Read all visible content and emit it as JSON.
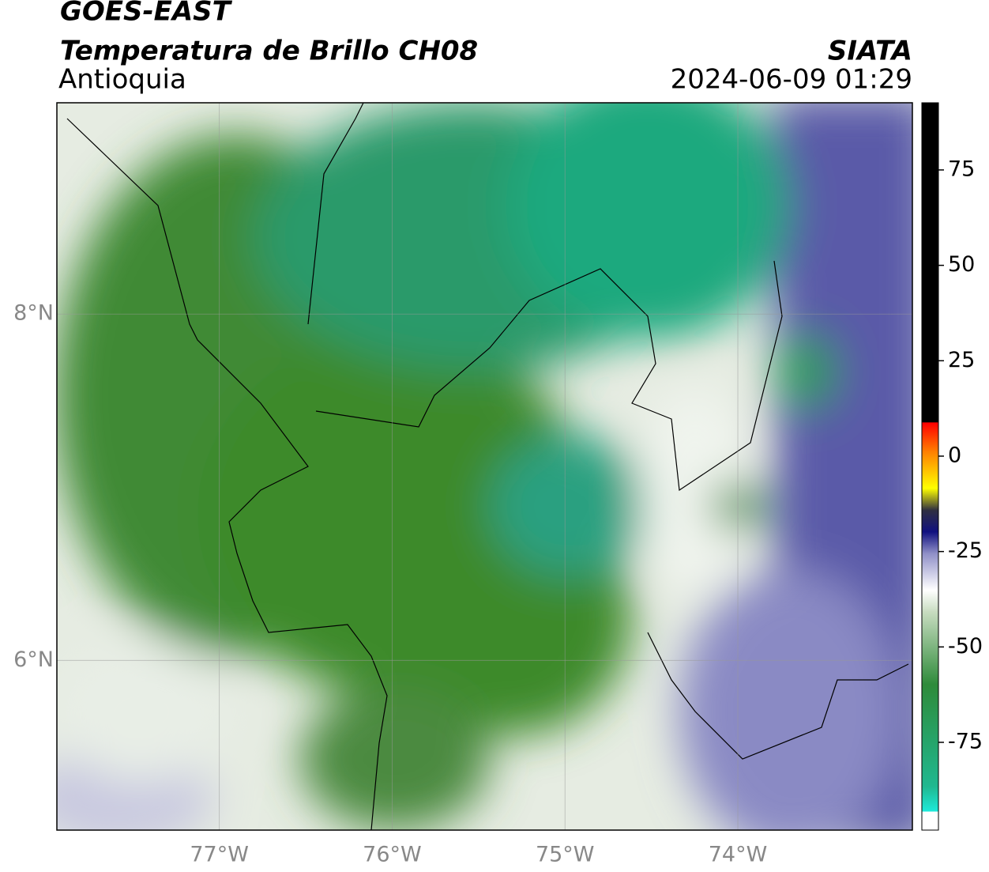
{
  "header": {
    "title": "GOES-EAST",
    "subtitle": "Temperatura de Brillo CH08",
    "region": "Antioquia",
    "source": "SIATA",
    "timestamp": "2024-06-09 01:29"
  },
  "map": {
    "xlim": [
      -77.94,
      -72.99
    ],
    "ylim": [
      5.02,
      9.22
    ],
    "xticks": [
      {
        "value": -77,
        "label": "77°W"
      },
      {
        "value": -76,
        "label": "76°W"
      },
      {
        "value": -75,
        "label": "75°W"
      },
      {
        "value": -74,
        "label": "74°W"
      }
    ],
    "yticks": [
      {
        "value": 8,
        "label": "8°N"
      },
      {
        "value": 6,
        "label": "6°N"
      }
    ],
    "grid": true
  },
  "colorbar": {
    "lim": [
      -98,
      92.6
    ],
    "ticks": [
      75,
      50,
      25,
      0,
      -25,
      -50,
      -75
    ]
  }
}
